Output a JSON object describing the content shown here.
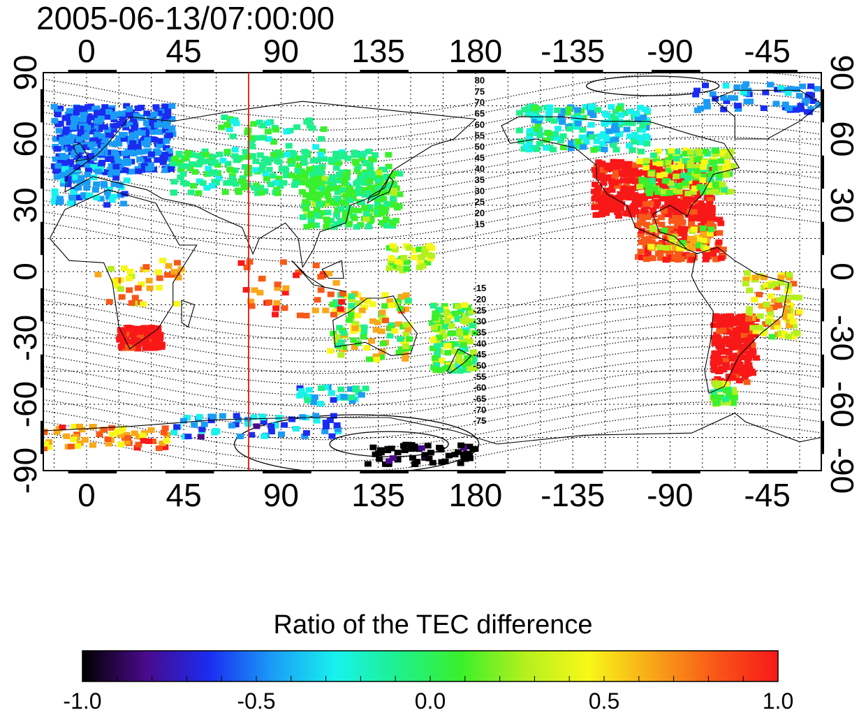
{
  "title": "2005-06-13/07:00:00",
  "map": {
    "lon_ticks_top": [
      "0",
      "45",
      "90",
      "135",
      "180",
      "-135",
      "-90",
      "-45"
    ],
    "lon_ticks_bottom": [
      "0",
      "45",
      "90",
      "135",
      "180",
      "-135",
      "-90",
      "-45"
    ],
    "lon_values": [
      0,
      45,
      90,
      135,
      180,
      225,
      270,
      315
    ],
    "lon_range": [
      -20,
      340
    ],
    "lat_range": [
      -90,
      90
    ],
    "lat_ticks_left": [
      "90",
      "60",
      "30",
      "0",
      "-30",
      "-60",
      "-90"
    ],
    "lat_ticks_right": [
      "90",
      "60",
      "30",
      "0",
      "-30",
      "-60",
      "-90"
    ],
    "lat_values": [
      90,
      60,
      30,
      0,
      -30,
      -60,
      -90
    ],
    "meridian_marker_lon": 75,
    "meridian_marker_color": "#e8281e",
    "grid": "dotted",
    "contour_labels_north": [
      "80",
      "75",
      "70",
      "65",
      "60",
      "55",
      "50",
      "45",
      "40",
      "35",
      "30",
      "25",
      "20",
      "15"
    ],
    "contour_labels_south": [
      "-15",
      "-20",
      "-25",
      "-30",
      "-35",
      "-40",
      "-45",
      "-50",
      "-55",
      "-60",
      "-65",
      "-70",
      "-75"
    ]
  },
  "colorbar": {
    "title": "Ratio of the TEC difference",
    "ticks": [
      "-1.0",
      "-0.5",
      "0.0",
      "0.5",
      "1.0"
    ],
    "tick_values": [
      -1.0,
      -0.5,
      0.0,
      0.5,
      1.0
    ],
    "range": [
      -1.0,
      1.0
    ],
    "colors": [
      "#000000",
      "#4a0a8a",
      "#1a2cf0",
      "#1a9cf6",
      "#18f2ee",
      "#1ef08c",
      "#3af02a",
      "#b4f01e",
      "#f8f818",
      "#f8a818",
      "#f85818",
      "#f81818"
    ]
  }
}
